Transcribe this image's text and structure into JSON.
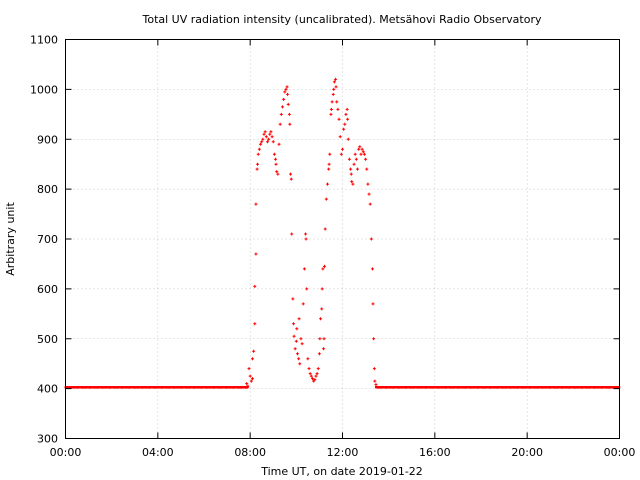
{
  "chart_data": {
    "type": "scatter",
    "title": "Total UV radiation intensity (uncalibrated). Metsähovi Radio Observatory",
    "xlabel": "Time UT, on date 2019-01-22",
    "ylabel": "Arbitrary unit",
    "xlim": [
      0,
      24
    ],
    "ylim": [
      300,
      1100
    ],
    "x_unit": "hours UT",
    "x_ticks": [
      0,
      4,
      8,
      12,
      16,
      20,
      24
    ],
    "x_tick_labels": [
      "00:00",
      "04:00",
      "08:00",
      "12:00",
      "16:00",
      "20:00",
      "00:00"
    ],
    "y_ticks": [
      300,
      400,
      500,
      600,
      700,
      800,
      900,
      1000,
      1100
    ],
    "y_tick_labels": [
      "300",
      "400",
      "500",
      "600",
      "700",
      "800",
      "900",
      "1000",
      "1100"
    ],
    "grid": true,
    "marker_color": "#ff0000",
    "baseline": {
      "value": 402,
      "x_start": 0.0,
      "x_end": 7.9,
      "x_start2": 13.45,
      "x_end2": 24.0
    },
    "series": [
      {
        "name": "",
        "points": [
          [
            7.85,
            410
          ],
          [
            7.9,
            405
          ],
          [
            7.95,
            440
          ],
          [
            8.0,
            425
          ],
          [
            8.05,
            415
          ],
          [
            8.1,
            420
          ],
          [
            8.1,
            460
          ],
          [
            8.15,
            475
          ],
          [
            8.2,
            530
          ],
          [
            8.2,
            605
          ],
          [
            8.25,
            670
          ],
          [
            8.25,
            770
          ],
          [
            8.3,
            840
          ],
          [
            8.32,
            850
          ],
          [
            8.35,
            870
          ],
          [
            8.4,
            880
          ],
          [
            8.45,
            890
          ],
          [
            8.5,
            895
          ],
          [
            8.55,
            900
          ],
          [
            8.6,
            910
          ],
          [
            8.65,
            915
          ],
          [
            8.7,
            905
          ],
          [
            8.75,
            895
          ],
          [
            8.8,
            900
          ],
          [
            8.85,
            910
          ],
          [
            8.9,
            915
          ],
          [
            8.95,
            905
          ],
          [
            9.0,
            895
          ],
          [
            9.05,
            870
          ],
          [
            9.1,
            860
          ],
          [
            9.12,
            850
          ],
          [
            9.15,
            835
          ],
          [
            9.2,
            830
          ],
          [
            9.25,
            890
          ],
          [
            9.3,
            930
          ],
          [
            9.35,
            950
          ],
          [
            9.4,
            965
          ],
          [
            9.45,
            980
          ],
          [
            9.5,
            995
          ],
          [
            9.55,
            1000
          ],
          [
            9.6,
            1005
          ],
          [
            9.62,
            990
          ],
          [
            9.65,
            970
          ],
          [
            9.7,
            950
          ],
          [
            9.72,
            930
          ],
          [
            9.75,
            830
          ],
          [
            9.78,
            820
          ],
          [
            9.8,
            710
          ],
          [
            9.85,
            580
          ],
          [
            9.88,
            530
          ],
          [
            9.9,
            505
          ],
          [
            9.95,
            480
          ],
          [
            10.0,
            495
          ],
          [
            10.02,
            520
          ],
          [
            10.05,
            470
          ],
          [
            10.1,
            460
          ],
          [
            10.12,
            540
          ],
          [
            10.15,
            450
          ],
          [
            10.2,
            500
          ],
          [
            10.25,
            490
          ],
          [
            10.3,
            570
          ],
          [
            10.35,
            640
          ],
          [
            10.4,
            710
          ],
          [
            10.42,
            700
          ],
          [
            10.45,
            600
          ],
          [
            10.5,
            460
          ],
          [
            10.55,
            440
          ],
          [
            10.6,
            430
          ],
          [
            10.65,
            425
          ],
          [
            10.7,
            420
          ],
          [
            10.75,
            415
          ],
          [
            10.8,
            418
          ],
          [
            10.85,
            425
          ],
          [
            10.9,
            430
          ],
          [
            10.95,
            440
          ],
          [
            11.0,
            470
          ],
          [
            11.02,
            500
          ],
          [
            11.05,
            540
          ],
          [
            11.1,
            560
          ],
          [
            11.12,
            600
          ],
          [
            11.15,
            640
          ],
          [
            11.18,
            480
          ],
          [
            11.2,
            500
          ],
          [
            11.22,
            645
          ],
          [
            11.25,
            720
          ],
          [
            11.3,
            780
          ],
          [
            11.35,
            810
          ],
          [
            11.4,
            840
          ],
          [
            11.42,
            850
          ],
          [
            11.45,
            870
          ],
          [
            11.5,
            950
          ],
          [
            11.52,
            960
          ],
          [
            11.55,
            975
          ],
          [
            11.6,
            990
          ],
          [
            11.62,
            1000
          ],
          [
            11.65,
            1015
          ],
          [
            11.7,
            1020
          ],
          [
            11.72,
            1005
          ],
          [
            11.75,
            975
          ],
          [
            11.8,
            960
          ],
          [
            11.85,
            940
          ],
          [
            11.9,
            905
          ],
          [
            11.95,
            870
          ],
          [
            12.0,
            880
          ],
          [
            12.05,
            920
          ],
          [
            12.1,
            930
          ],
          [
            12.15,
            950
          ],
          [
            12.2,
            960
          ],
          [
            12.22,
            940
          ],
          [
            12.25,
            900
          ],
          [
            12.3,
            860
          ],
          [
            12.35,
            840
          ],
          [
            12.38,
            830
          ],
          [
            12.4,
            815
          ],
          [
            12.45,
            810
          ],
          [
            12.5,
            850
          ],
          [
            12.55,
            870
          ],
          [
            12.6,
            860
          ],
          [
            12.65,
            840
          ],
          [
            12.7,
            880
          ],
          [
            12.75,
            885
          ],
          [
            12.8,
            870
          ],
          [
            12.85,
            880
          ],
          [
            12.9,
            875
          ],
          [
            12.95,
            870
          ],
          [
            13.0,
            860
          ],
          [
            13.05,
            840
          ],
          [
            13.1,
            810
          ],
          [
            13.15,
            790
          ],
          [
            13.2,
            770
          ],
          [
            13.25,
            700
          ],
          [
            13.3,
            640
          ],
          [
            13.32,
            570
          ],
          [
            13.35,
            500
          ],
          [
            13.38,
            440
          ],
          [
            13.4,
            415
          ],
          [
            13.45,
            408
          ]
        ]
      }
    ]
  }
}
